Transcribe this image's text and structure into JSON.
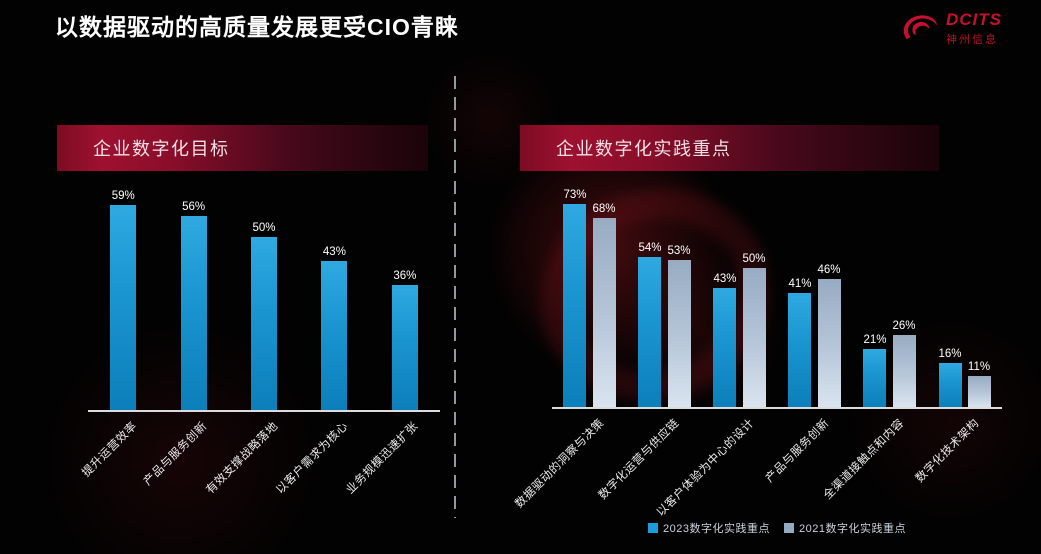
{
  "title": "以数据驱动的高质量发展更受CIO青睐",
  "logo": {
    "brand": "DCITS",
    "company": "神州信息"
  },
  "panels": {
    "left": {
      "header": "企业数字化目标"
    },
    "right": {
      "header": "企业数字化实践重点"
    }
  },
  "legend": {
    "items": [
      {
        "label": "2023数字化实践重点",
        "color": "#1b9cd9"
      },
      {
        "label": "2021数字化实践重点",
        "color": "#94aac1"
      }
    ]
  },
  "colors": {
    "accent_red": "#c8102e",
    "bar_blue": "#1b9cd9",
    "bar_gray": "#94aac1",
    "banner_red": "#9e1130",
    "background": "#020202"
  },
  "chart_data": [
    {
      "type": "bar",
      "title": "企业数字化目标",
      "categories": [
        "提升运营效率",
        "产品与服务创新",
        "有效支撑战略落地",
        "以客户需求为核心",
        "业务规模迅速扩张"
      ],
      "values": [
        59,
        56,
        50,
        43,
        36
      ],
      "unit": "%",
      "xlabel": "",
      "ylabel": "",
      "ylim": [
        0,
        64
      ],
      "grid": false,
      "bar_color": "#1b9cd9"
    },
    {
      "type": "bar",
      "title": "企业数字化实践重点",
      "categories": [
        "数据驱动的洞察与决策",
        "数字化运营与供应链",
        "以客户体验为中心的设计",
        "产品与服务创新",
        "全渠道接触点和内容",
        "数字化技术架构"
      ],
      "series": [
        {
          "name": "2023数字化实践重点",
          "values": [
            73,
            54,
            43,
            41,
            21,
            16
          ],
          "color": "#1b9cd9"
        },
        {
          "name": "2021数字化实践重点",
          "values": [
            68,
            53,
            50,
            46,
            26,
            11
          ],
          "color": "#94aac1"
        }
      ],
      "unit": "%",
      "xlabel": "",
      "ylabel": "",
      "ylim": [
        0,
        80
      ],
      "grid": false,
      "legend_position": "bottom"
    }
  ]
}
